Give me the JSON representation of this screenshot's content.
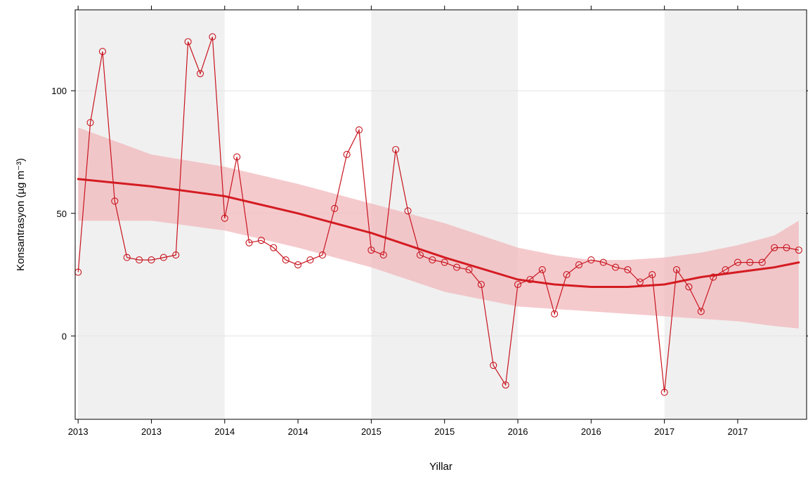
{
  "chart_data": {
    "type": "line",
    "title": "",
    "xlabel": "Yillar",
    "ylabel": "Konsantrasyon (µg m⁻³)",
    "xlim": [
      2012.98,
      2017.97
    ],
    "ylim": [
      -34,
      133
    ],
    "x_ticks": [
      {
        "value": 2013.0,
        "label": "2013"
      },
      {
        "value": 2013.5,
        "label": "2013"
      },
      {
        "value": 2014.0,
        "label": "2014"
      },
      {
        "value": 2014.5,
        "label": "2014"
      },
      {
        "value": 2015.0,
        "label": "2015"
      },
      {
        "value": 2015.5,
        "label": "2015"
      },
      {
        "value": 2016.0,
        "label": "2016"
      },
      {
        "value": 2016.5,
        "label": "2016"
      },
      {
        "value": 2017.0,
        "label": "2017"
      },
      {
        "value": 2017.5,
        "label": "2017"
      }
    ],
    "y_ticks": [
      {
        "value": 0,
        "label": "0"
      },
      {
        "value": 50,
        "label": "50"
      },
      {
        "value": 100,
        "label": "100"
      }
    ],
    "grid": "horizontal",
    "shaded_years": [
      [
        2013,
        2014
      ],
      [
        2015,
        2016
      ],
      [
        2017,
        2018
      ]
    ],
    "colors": {
      "series": "#c8141e",
      "trend": "#d41c22",
      "band": "#f2b8bc",
      "shade": "#f0f0f0",
      "grid": "#e4e4e4"
    },
    "series": [
      {
        "values": [
          {
            "x": 2013.0,
            "y": 26
          },
          {
            "x": 2013.0833,
            "y": 87
          },
          {
            "x": 2013.1667,
            "y": 116
          },
          {
            "x": 2013.25,
            "y": 55
          },
          {
            "x": 2013.3333,
            "y": 32
          },
          {
            "x": 2013.4167,
            "y": 31
          },
          {
            "x": 2013.5,
            "y": 31
          },
          {
            "x": 2013.5833,
            "y": 32
          },
          {
            "x": 2013.6667,
            "y": 33
          },
          {
            "x": 2013.75,
            "y": 120
          },
          {
            "x": 2013.8333,
            "y": 107
          },
          {
            "x": 2013.9167,
            "y": 122
          },
          {
            "x": 2014.0,
            "y": 48
          },
          {
            "x": 2014.0833,
            "y": 73
          },
          {
            "x": 2014.1667,
            "y": 38
          },
          {
            "x": 2014.25,
            "y": 39
          },
          {
            "x": 2014.3333,
            "y": 36
          },
          {
            "x": 2014.4167,
            "y": 31
          },
          {
            "x": 2014.5,
            "y": 29
          },
          {
            "x": 2014.5833,
            "y": 31
          },
          {
            "x": 2014.6667,
            "y": 33
          },
          {
            "x": 2014.75,
            "y": 52
          },
          {
            "x": 2014.8333,
            "y": 74
          },
          {
            "x": 2014.9167,
            "y": 84
          },
          {
            "x": 2015.0,
            "y": 35
          },
          {
            "x": 2015.0833,
            "y": 33
          },
          {
            "x": 2015.1667,
            "y": 76
          },
          {
            "x": 2015.25,
            "y": 51
          },
          {
            "x": 2015.3333,
            "y": 33
          },
          {
            "x": 2015.4167,
            "y": 31
          },
          {
            "x": 2015.5,
            "y": 30
          },
          {
            "x": 2015.5833,
            "y": 28
          },
          {
            "x": 2015.6667,
            "y": 27
          },
          {
            "x": 2015.75,
            "y": 21
          },
          {
            "x": 2015.8333,
            "y": -12
          },
          {
            "x": 2015.9167,
            "y": -20
          },
          {
            "x": 2016.0,
            "y": 21
          },
          {
            "x": 2016.0833,
            "y": 23
          },
          {
            "x": 2016.1667,
            "y": 27
          },
          {
            "x": 2016.25,
            "y": 9
          },
          {
            "x": 2016.3333,
            "y": 25
          },
          {
            "x": 2016.4167,
            "y": 29
          },
          {
            "x": 2016.5,
            "y": 31
          },
          {
            "x": 2016.5833,
            "y": 30
          },
          {
            "x": 2016.6667,
            "y": 28
          },
          {
            "x": 2016.75,
            "y": 27
          },
          {
            "x": 2016.8333,
            "y": 22
          },
          {
            "x": 2016.9167,
            "y": 25
          },
          {
            "x": 2017.0,
            "y": -23
          },
          {
            "x": 2017.0833,
            "y": 27
          },
          {
            "x": 2017.1667,
            "y": 20
          },
          {
            "x": 2017.25,
            "y": 10
          },
          {
            "x": 2017.3333,
            "y": 24
          },
          {
            "x": 2017.4167,
            "y": 27
          },
          {
            "x": 2017.5,
            "y": 30
          },
          {
            "x": 2017.5833,
            "y": 30
          },
          {
            "x": 2017.6667,
            "y": 30
          },
          {
            "x": 2017.75,
            "y": 36
          },
          {
            "x": 2017.8333,
            "y": 36
          },
          {
            "x": 2017.9167,
            "y": 35
          }
        ]
      }
    ],
    "trend": {
      "x": [
        2013.0,
        2013.5,
        2014.0,
        2014.5,
        2015.0,
        2015.5,
        2016.0,
        2016.25,
        2016.5,
        2016.75,
        2017.0,
        2017.25,
        2017.5,
        2017.75,
        2017.9167
      ],
      "y": [
        64,
        61,
        57,
        50,
        42,
        32,
        23,
        21,
        20,
        20,
        21,
        24,
        26,
        28,
        30
      ],
      "lower": [
        47,
        47,
        43,
        36,
        28,
        18,
        12,
        11,
        10,
        9,
        8,
        7,
        6,
        4,
        3
      ],
      "upper": [
        85,
        74,
        69,
        62,
        54,
        46,
        36,
        33,
        31,
        31,
        32,
        34,
        37,
        41,
        47
      ]
    }
  }
}
